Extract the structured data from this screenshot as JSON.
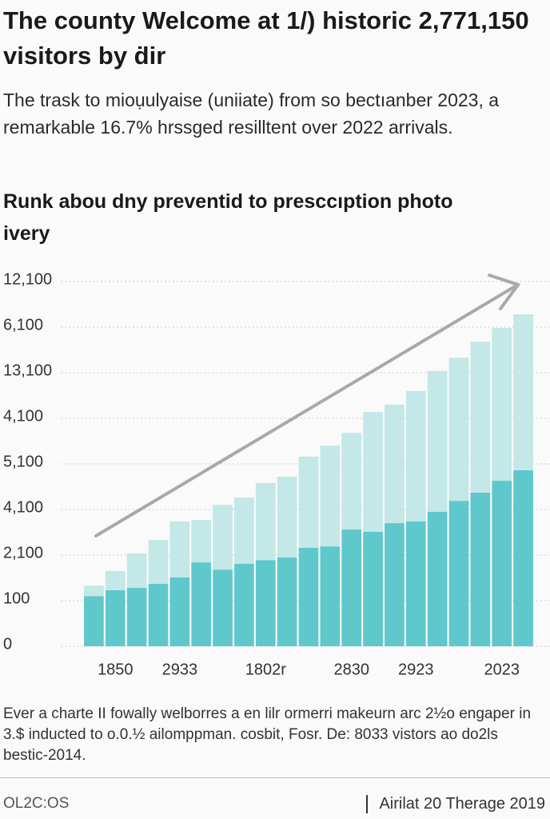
{
  "header": {
    "title": "The county Welcome at 1/) historic 2,771,150 visitors by ḋir",
    "subtitle": "The trask to mioụulyaise (uniiate) from so bectıanber 2023, a remarkable 16.7% hrssged resilltent over 2022 arrivals."
  },
  "chart_data": {
    "type": "bar",
    "stacked": true,
    "title": "Runk abou dny preventid to presccıption photo ivery",
    "categories": [
      null,
      "1850",
      null,
      null,
      "2933",
      null,
      null,
      null,
      "1802r",
      null,
      null,
      null,
      "2830",
      null,
      null,
      "2923",
      null,
      null,
      null,
      "2023",
      null
    ],
    "series": [
      {
        "color": "#5ec8cc",
        "values": [
          1.1,
          1.23,
          1.28,
          1.37,
          1.51,
          1.84,
          1.68,
          1.81,
          1.89,
          1.95,
          2.16,
          2.19,
          2.56,
          2.51,
          2.7,
          2.74,
          2.95,
          3.19,
          3.37,
          3.63,
          3.86
        ]
      },
      {
        "color": "#c4e7e7",
        "values": [
          0.23,
          0.42,
          0.76,
          0.96,
          1.23,
          0.93,
          1.42,
          1.45,
          1.69,
          1.77,
          2.0,
          2.21,
          2.12,
          2.63,
          2.6,
          2.86,
          3.09,
          3.14,
          3.31,
          3.35,
          3.42
        ]
      }
    ],
    "ylim": [
      0,
      8
    ],
    "yticks": [
      0,
      {
        "value": 1,
        "label": "100"
      },
      {
        "value": 2,
        "label": "2,100"
      },
      {
        "value": 3,
        "label": "4,100"
      },
      {
        "value": 4,
        "label": "5,100"
      },
      {
        "value": 5,
        "label": "4,100"
      },
      {
        "value": 6,
        "label": "13,100"
      },
      {
        "value": 7,
        "label": "6,100"
      },
      {
        "value": 8,
        "label": "12,100"
      }
    ],
    "grid": true
  },
  "footer": {
    "note": "Ever a charte II fowally welborres a en lilr ormerri makeurn arc 2½o engaper in 3.$ inducted to o.0.½ ailomppman. cosbit, Fosr. De: 8033 vistors ao do2ls bestic-2014.",
    "left": "OL2C:OS",
    "right": "Airilat 20 Therage 2019"
  }
}
